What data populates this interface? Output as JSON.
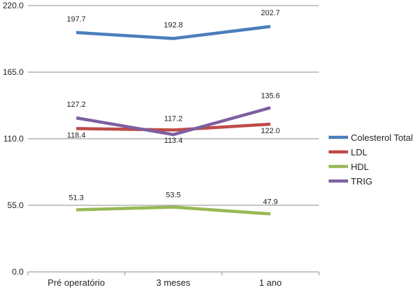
{
  "chart_data": {
    "type": "line",
    "categories": [
      "Pré operatório",
      "3 meses",
      "1 ano"
    ],
    "series": [
      {
        "name": "Colesterol Total",
        "values": [
          197.7,
          192.8,
          202.7
        ],
        "color": "#4a7ebb",
        "labels": [
          "197.7",
          "192.8",
          "202.7"
        ]
      },
      {
        "name": "LDL",
        "values": [
          118.4,
          117.2,
          122.0
        ],
        "color": "#be4b48",
        "labels": [
          "118.4",
          "117.2",
          "122.0"
        ]
      },
      {
        "name": "HDL",
        "values": [
          51.3,
          53.5,
          47.9
        ],
        "color": "#98b954",
        "labels": [
          "51.3",
          "53.5",
          "47.9"
        ]
      },
      {
        "name": "TRIG",
        "values": [
          127.2,
          113.4,
          135.6
        ],
        "color": "#7d5fa0",
        "labels": [
          "127.2",
          "113.4",
          "135.6"
        ]
      }
    ],
    "yticks": [
      "0.0",
      "55.0",
      "110.0",
      "165.0",
      "220.0"
    ],
    "ylim": [
      0,
      220
    ],
    "title": "",
    "xlabel": "",
    "ylabel": "",
    "grid": true,
    "legend_position": "right"
  }
}
